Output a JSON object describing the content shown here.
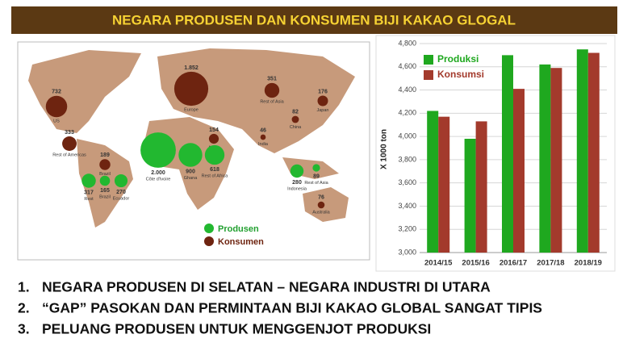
{
  "title": "NEGARA PRODUSEN DAN KONSUMEN BIJI KAKAO GLOGAL",
  "map": {
    "legend": [
      {
        "name": "Produsen",
        "color": "#22b830"
      },
      {
        "name": "Konsumen",
        "color": "#6e2410"
      }
    ],
    "consumers": [
      {
        "place": "US",
        "value": 732
      },
      {
        "place": "Europe",
        "value": 1852,
        "value_label": "1.852"
      },
      {
        "place": "Rest of Asia",
        "value": 351
      },
      {
        "place": "Japan",
        "value": 176
      },
      {
        "place": "Rest of Americas",
        "value": 333
      },
      {
        "place": "Brazil",
        "value": 189
      },
      {
        "place": "China",
        "value": 82
      },
      {
        "place": "Africa",
        "value": 154
      },
      {
        "place": "India",
        "value": 46
      },
      {
        "place": "Australia",
        "value": 76
      }
    ],
    "producers": [
      {
        "place": "Côte d'Ivoire",
        "value": 2000,
        "value_label": "2.000"
      },
      {
        "place": "Ghana",
        "value": 900
      },
      {
        "place": "Rest of Africa",
        "value": 618
      },
      {
        "place": "Indonesia",
        "value": 280
      },
      {
        "place": "Rest of Asia",
        "value": 89
      },
      {
        "place": "Rest",
        "value": 317
      },
      {
        "place": "Brazil",
        "value": 165
      },
      {
        "place": "Ecuador",
        "value": 270
      }
    ]
  },
  "chart_data": {
    "type": "bar",
    "y_label": "X 1000 ton",
    "categories": [
      "2014/15",
      "2015/16",
      "2016/17",
      "2017/18",
      "2018/19"
    ],
    "series": [
      {
        "name": "Produksi",
        "color": "#1fa81f",
        "values": [
          4220,
          3980,
          4700,
          4620,
          4750
        ]
      },
      {
        "name": "Konsumsi",
        "color": "#a33a2c",
        "values": [
          4170,
          4130,
          4410,
          4590,
          4720
        ]
      }
    ],
    "ylim": [
      3000,
      4800
    ],
    "yticks": [
      {
        "value": 3000,
        "label": "3,000"
      },
      {
        "value": 3200,
        "label": "3,200"
      },
      {
        "value": 3400,
        "label": "3,400"
      },
      {
        "value": 3600,
        "label": "3,600"
      },
      {
        "value": 3800,
        "label": "3,800"
      },
      {
        "value": 4000,
        "label": "4,000"
      },
      {
        "value": 4200,
        "label": "4,200"
      },
      {
        "value": 4400,
        "label": "4,400"
      },
      {
        "value": 4600,
        "label": "4,600"
      },
      {
        "value": 4800,
        "label": "4,800"
      }
    ],
    "grid": true,
    "legend": "top-left"
  },
  "points": [
    {
      "number": "1.",
      "text": "NEGARA PRODUSEN DI SELATAN – NEGARA INDUSTRI DI UTARA"
    },
    {
      "number": "2.",
      "text": "“GAP” PASOKAN DAN PERMINTAAN BIJI KAKAO GLOBAL SANGAT TIPIS"
    },
    {
      "number": "3.",
      "text": "PELUANG PRODUSEN UNTUK MENGGENJOT PRODUKSI"
    }
  ]
}
